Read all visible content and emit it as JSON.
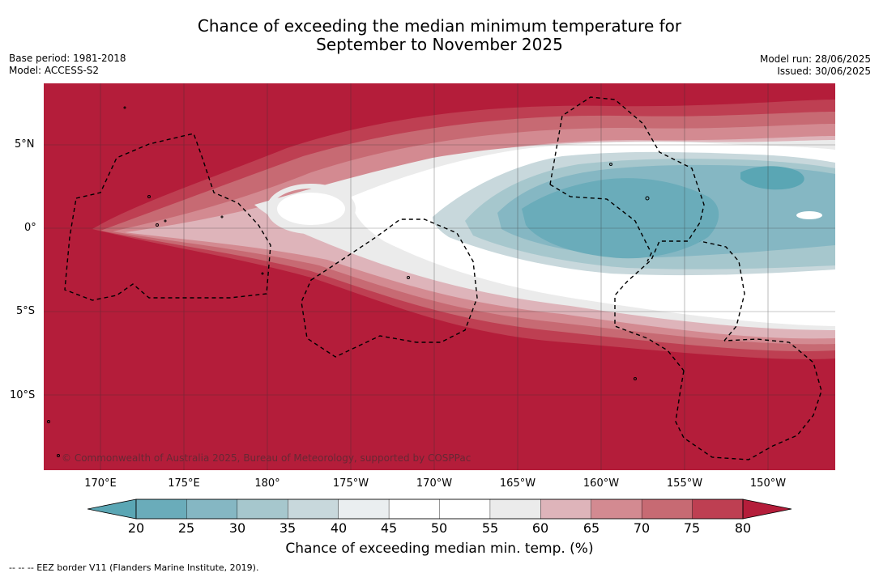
{
  "header": {
    "title_line1": "Chance of exceeding the median minimum temperature for",
    "title_line2": "September to November 2025",
    "base_period": "Base period: 1981-2018",
    "model": "Model: ACCESS-S2",
    "model_run": "Model run: 28/06/2025",
    "issued": "Issued: 30/06/2025"
  },
  "map": {
    "copyright": "© Commonwealth of Australia 2025, Bureau of Meteorology, supported by COSPPac",
    "lat_labels": [
      "5°N",
      "0°",
      "5°S",
      "10°S"
    ],
    "lon_labels": [
      "170°E",
      "175°E",
      "180°",
      "175°W",
      "170°W",
      "165°W",
      "160°W",
      "155°W",
      "150°W"
    ],
    "background_color": "#b41d3a",
    "border_color": "#000000"
  },
  "colorbar": {
    "ticks": [
      "20",
      "25",
      "30",
      "35",
      "40",
      "45",
      "50",
      "55",
      "60",
      "65",
      "70",
      "75",
      "80"
    ],
    "colors": [
      "#5aa6b4",
      "#6aacba",
      "#85b7c3",
      "#a6c7cd",
      "#c8d8dc",
      "#eaeef0",
      "#ffffff",
      "#ffffff",
      "#ebebeb",
      "#deb4ba",
      "#d38a91",
      "#c76a73",
      "#be3f52",
      "#b41d3a"
    ],
    "label": "Chance of exceeding median min. temp. (%)"
  },
  "footnote": "--  --  -- EEZ border V11 (Flanders Marine Institute, 2019)."
}
